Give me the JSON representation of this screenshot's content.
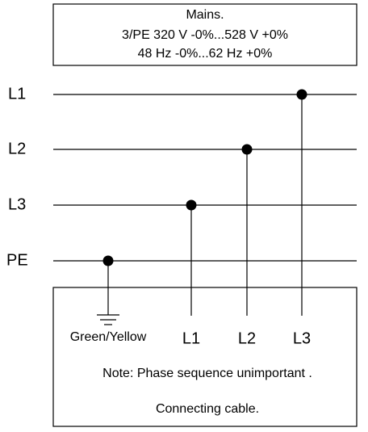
{
  "mains": {
    "title": "Mains.",
    "voltage": "3/PE 320 V -0%...528 V +0%",
    "frequency": "48 Hz -0%...62 Hz +0%"
  },
  "buses": [
    "L1",
    "L2",
    "L3",
    "PE"
  ],
  "cable": {
    "terminals": [
      "Green/Yellow",
      "L1",
      "L2",
      "L3"
    ],
    "note": "Note: Phase sequence unimportant .",
    "title": "Connecting cable."
  }
}
